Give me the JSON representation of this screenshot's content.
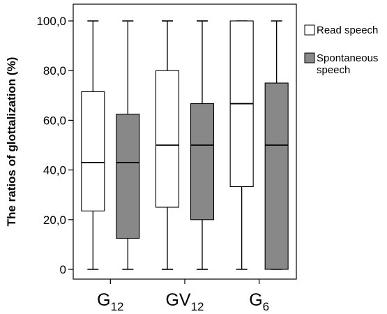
{
  "chart_data": {
    "type": "boxplot",
    "ylabel": "The ratios of glottalization (%)",
    "ylim": [
      0,
      100
    ],
    "yticks": [
      "0",
      "20,0",
      "40,0",
      "60,0",
      "80,0",
      "100,0"
    ],
    "ytick_values": [
      0,
      20,
      40,
      60,
      80,
      100
    ],
    "categories": [
      {
        "base": "G",
        "sub": "12"
      },
      {
        "base": "GV",
        "sub": "12"
      },
      {
        "base": "G",
        "sub": "6"
      }
    ],
    "series": [
      {
        "name": "Read speech",
        "color": "#ffffff",
        "boxes": [
          {
            "min": 0,
            "q1": 23.5,
            "median": 43,
            "q3": 71.5,
            "max": 100
          },
          {
            "min": 0,
            "q1": 25,
            "median": 50,
            "q3": 80,
            "max": 100
          },
          {
            "min": 0,
            "q1": 33.3,
            "median": 66.7,
            "q3": 100,
            "max": 100
          }
        ]
      },
      {
        "name": "Spontaneous speech",
        "name_lines": [
          "Spontaneous",
          "speech"
        ],
        "color": "#888888",
        "boxes": [
          {
            "min": 0,
            "q1": 12.5,
            "median": 43,
            "q3": 62.5,
            "max": 100
          },
          {
            "min": 0,
            "q1": 20,
            "median": 50,
            "q3": 66.7,
            "max": 100
          },
          {
            "min": 0,
            "q1": 0,
            "median": 50,
            "q3": 75,
            "max": 100
          }
        ]
      }
    ],
    "legend_position": "right",
    "grid": false
  }
}
